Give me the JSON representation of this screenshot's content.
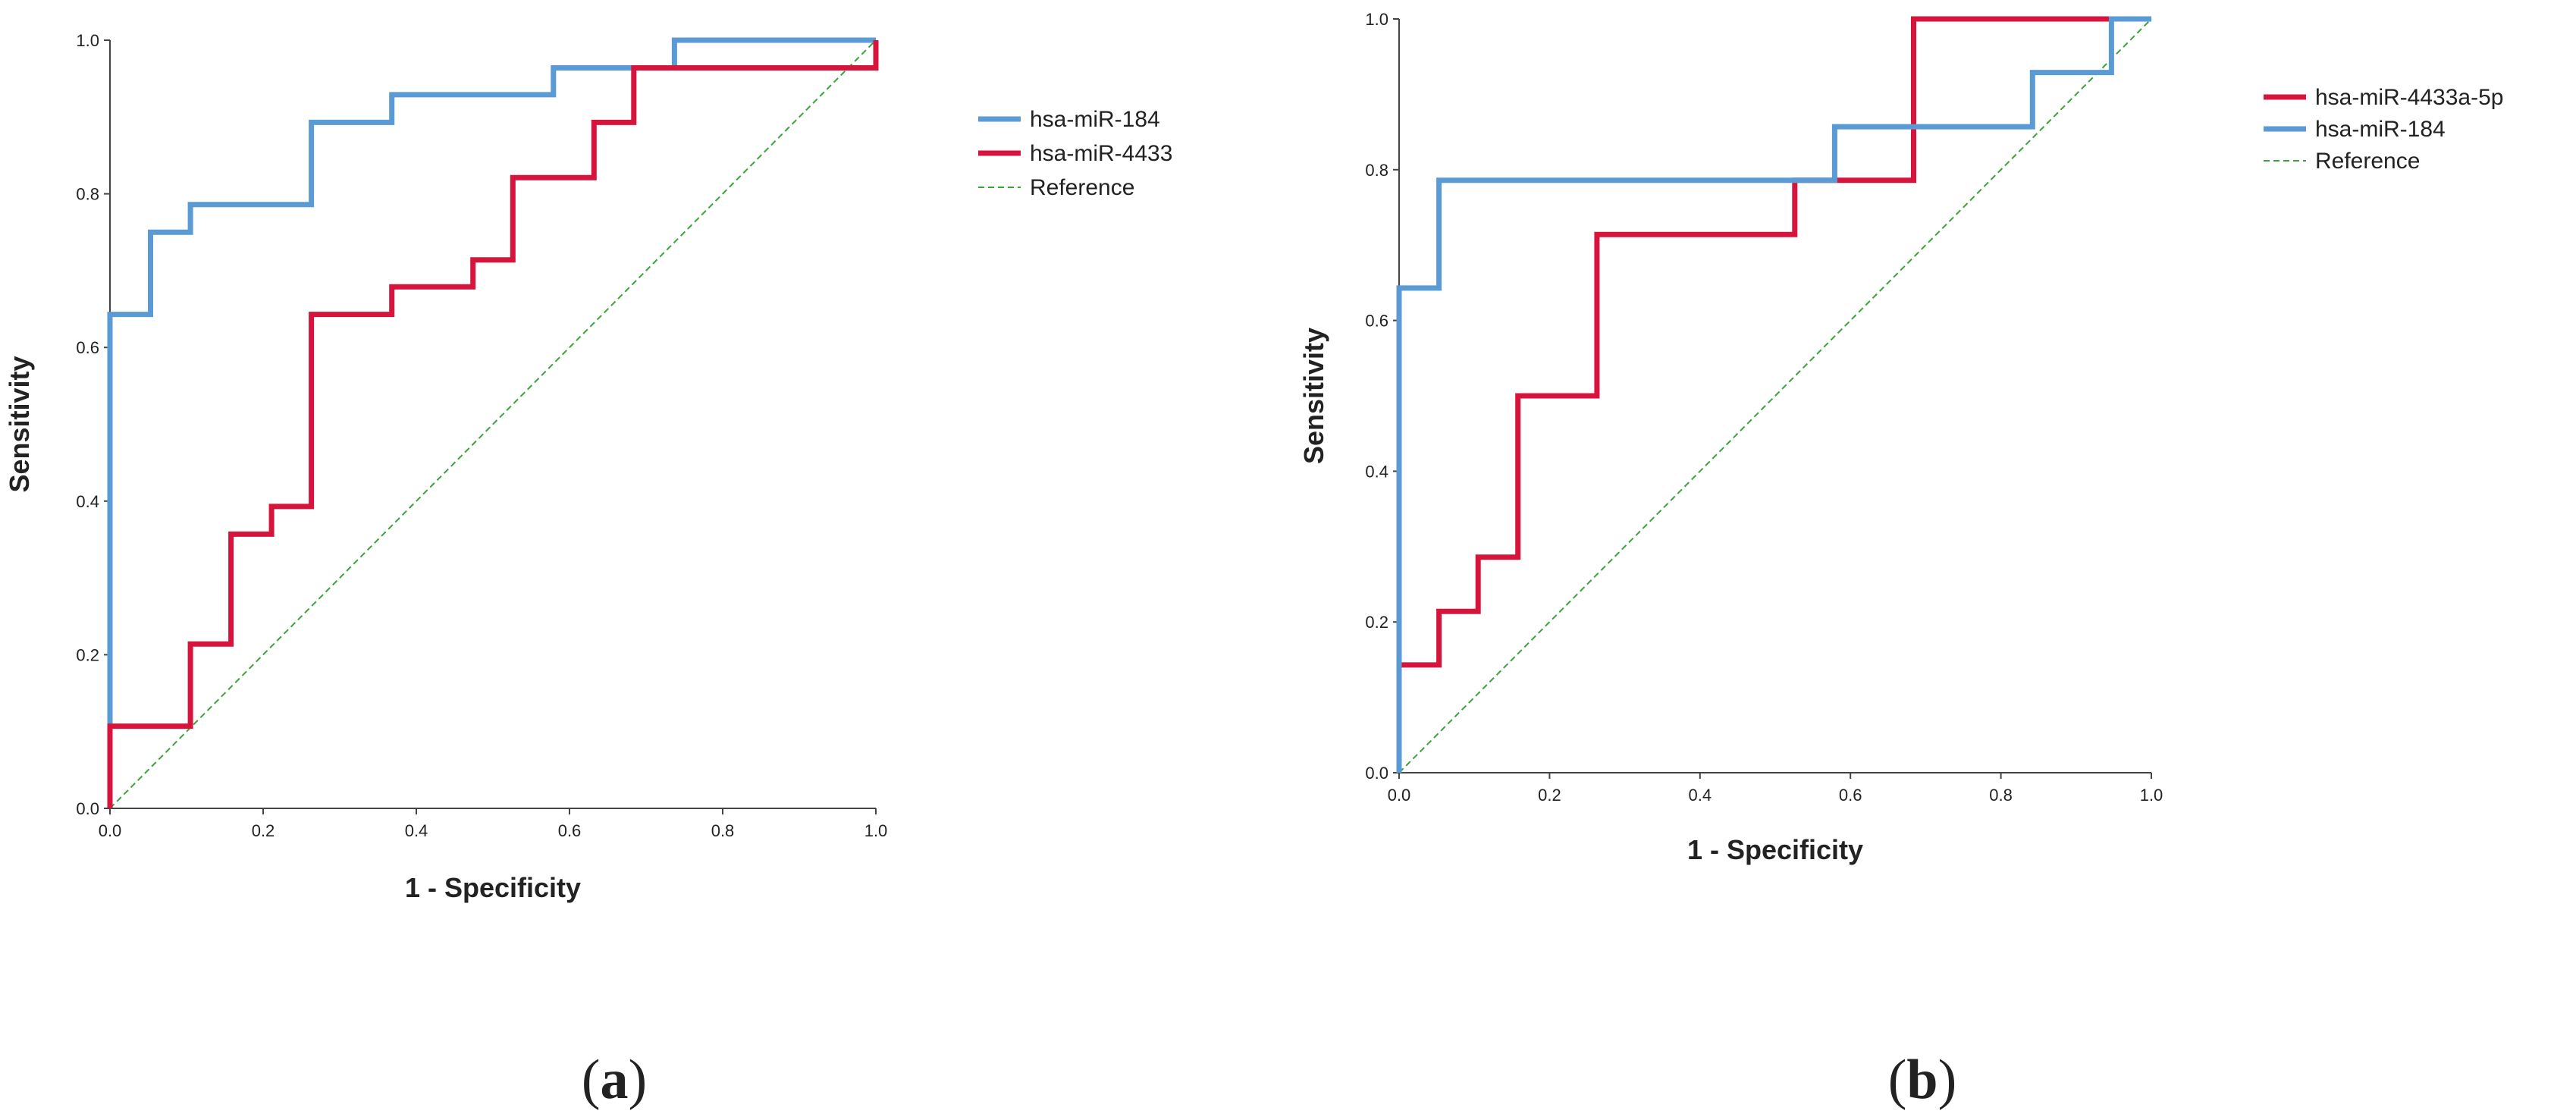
{
  "chart_data": [
    {
      "type": "line",
      "panel_label": {
        "open": "(",
        "letter": "a",
        "close": ")"
      },
      "xlabel": "1 - Specificity",
      "ylabel": "Sensitivity",
      "xlim": [
        0,
        1
      ],
      "ylim": [
        0,
        1
      ],
      "xticks": [
        "0.0",
        "0.2",
        "0.4",
        "0.6",
        "0.8",
        "1.0"
      ],
      "yticks": [
        "0.0",
        "0.2",
        "0.4",
        "0.6",
        "0.8",
        "1.0"
      ],
      "grid": false,
      "legend_position": "right",
      "series": [
        {
          "name": "hsa-miR-184",
          "color": "#5b9bd5",
          "style": "solid",
          "points": [
            [
              0,
              0
            ],
            [
              0,
              0.643
            ],
            [
              0.053,
              0.643
            ],
            [
              0.053,
              0.75
            ],
            [
              0.105,
              0.75
            ],
            [
              0.105,
              0.786
            ],
            [
              0.263,
              0.786
            ],
            [
              0.263,
              0.893
            ],
            [
              0.368,
              0.893
            ],
            [
              0.368,
              0.929
            ],
            [
              0.579,
              0.929
            ],
            [
              0.579,
              0.964
            ],
            [
              0.737,
              0.964
            ],
            [
              0.737,
              1
            ],
            [
              1,
              1
            ]
          ]
        },
        {
          "name": "hsa-miR-4433",
          "color": "#d7143c",
          "style": "solid",
          "points": [
            [
              0,
              0
            ],
            [
              0,
              0.107
            ],
            [
              0.105,
              0.107
            ],
            [
              0.105,
              0.214
            ],
            [
              0.158,
              0.214
            ],
            [
              0.158,
              0.357
            ],
            [
              0.211,
              0.357
            ],
            [
              0.211,
              0.393
            ],
            [
              0.263,
              0.393
            ],
            [
              0.263,
              0.643
            ],
            [
              0.368,
              0.643
            ],
            [
              0.368,
              0.679
            ],
            [
              0.474,
              0.679
            ],
            [
              0.474,
              0.714
            ],
            [
              0.526,
              0.714
            ],
            [
              0.526,
              0.821
            ],
            [
              0.632,
              0.821
            ],
            [
              0.632,
              0.893
            ],
            [
              0.684,
              0.893
            ],
            [
              0.684,
              0.964
            ],
            [
              1,
              0.964
            ],
            [
              1,
              1
            ]
          ]
        },
        {
          "name": "Reference",
          "color": "#3aa33a",
          "style": "dashed",
          "points": [
            [
              0,
              0
            ],
            [
              1,
              1
            ]
          ]
        }
      ]
    },
    {
      "type": "line",
      "panel_label": {
        "open": "(",
        "letter": "b",
        "close": ")"
      },
      "xlabel": "1 - Specificity",
      "ylabel": "Sensitivity",
      "xlim": [
        0,
        1
      ],
      "ylim": [
        0,
        1
      ],
      "xticks": [
        "0.0",
        "0.2",
        "0.4",
        "0.6",
        "0.8",
        "1.0"
      ],
      "yticks": [
        "0.0",
        "0.2",
        "0.4",
        "0.6",
        "0.8",
        "1.0"
      ],
      "grid": false,
      "legend_position": "right",
      "series": [
        {
          "name": "hsa-miR-4433a-5p",
          "color": "#d7143c",
          "style": "solid",
          "points": [
            [
              0,
              0
            ],
            [
              0,
              0.143
            ],
            [
              0.053,
              0.143
            ],
            [
              0.053,
              0.214
            ],
            [
              0.105,
              0.214
            ],
            [
              0.105,
              0.286
            ],
            [
              0.158,
              0.286
            ],
            [
              0.158,
              0.5
            ],
            [
              0.263,
              0.5
            ],
            [
              0.263,
              0.714
            ],
            [
              0.526,
              0.714
            ],
            [
              0.526,
              0.786
            ],
            [
              0.684,
              0.786
            ],
            [
              0.684,
              1
            ],
            [
              1,
              1
            ]
          ]
        },
        {
          "name": "hsa-miR-184",
          "color": "#5b9bd5",
          "style": "solid",
          "points": [
            [
              0,
              0
            ],
            [
              0,
              0.643
            ],
            [
              0.053,
              0.643
            ],
            [
              0.053,
              0.786
            ],
            [
              0.579,
              0.786
            ],
            [
              0.579,
              0.857
            ],
            [
              0.842,
              0.857
            ],
            [
              0.842,
              0.929
            ],
            [
              0.947,
              0.929
            ],
            [
              0.947,
              1
            ],
            [
              1,
              1
            ]
          ]
        },
        {
          "name": "Reference",
          "color": "#3aa33a",
          "style": "dashed",
          "points": [
            [
              0,
              0
            ],
            [
              1,
              1
            ]
          ]
        }
      ]
    }
  ]
}
